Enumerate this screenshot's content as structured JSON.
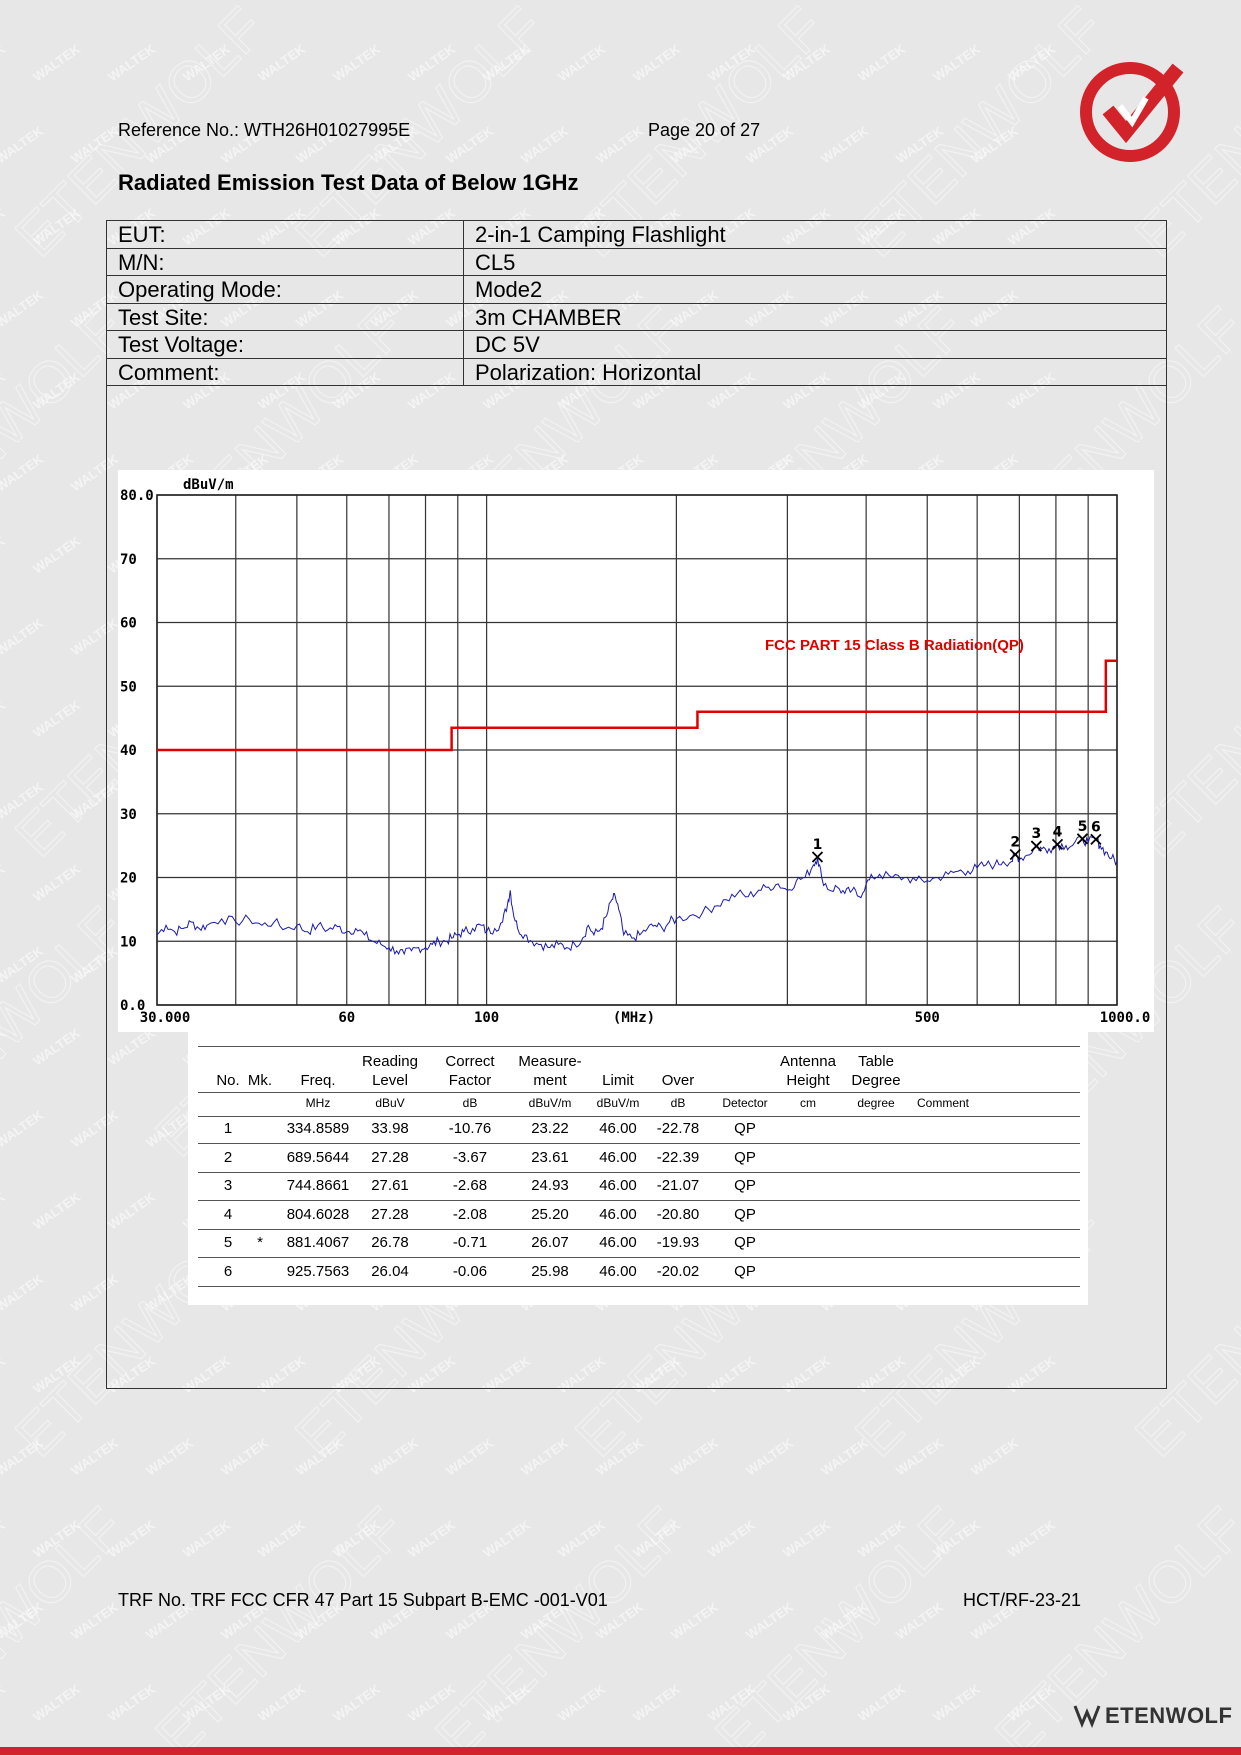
{
  "header": {
    "reference": "Reference No.: WTH26H01027995E",
    "page": "Page 20 of 27"
  },
  "title": "Radiated Emission Test Data of Below 1GHz",
  "info_rows": [
    {
      "key": "EUT:",
      "value": "2-in-1 Camping Flashlight"
    },
    {
      "key": "M/N:",
      "value": "CL5"
    },
    {
      "key": "Operating Mode:",
      "value": "Mode2"
    },
    {
      "key": "Test Site:",
      "value": "3m CHAMBER"
    },
    {
      "key": "Test Voltage:",
      "value": "DC 5V"
    },
    {
      "key": "Comment:",
      "value": "Polarization: Horizontal"
    }
  ],
  "chart_data": {
    "type": "line",
    "ylabel": "dBuV/m",
    "xlabel": "(MHz)",
    "x_scale": "log",
    "xlim": [
      30,
      1000
    ],
    "ylim": [
      0,
      80
    ],
    "y_ticks": [
      "0.0",
      "10",
      "20",
      "30",
      "40",
      "50",
      "60",
      "70",
      "80.0"
    ],
    "x_tick_labels": [
      {
        "value": 30,
        "label": "30.000"
      },
      {
        "value": 60,
        "label": "60"
      },
      {
        "value": 100,
        "label": "100"
      },
      {
        "value": 500,
        "label": "500"
      },
      {
        "value": 1000,
        "label": "1000.0"
      }
    ],
    "limit_label": "FCC PART 15 Class B Radiation(QP)",
    "limit_color": "#e00000",
    "trace_color": "#1a1ab0",
    "grid": true,
    "limit_line": [
      {
        "x": 30,
        "y": 40
      },
      {
        "x": 88,
        "y": 40
      },
      {
        "x": 88,
        "y": 43.5
      },
      {
        "x": 216,
        "y": 43.5
      },
      {
        "x": 216,
        "y": 46
      },
      {
        "x": 960,
        "y": 46
      },
      {
        "x": 960,
        "y": 54
      },
      {
        "x": 1000,
        "y": 54
      }
    ],
    "trace": [
      [
        30,
        11
      ],
      [
        31,
        12.5
      ],
      [
        32,
        11.5
      ],
      [
        33,
        12
      ],
      [
        34,
        13
      ],
      [
        35,
        12
      ],
      [
        36,
        12.5
      ],
      [
        38,
        13.5
      ],
      [
        40,
        13
      ],
      [
        42,
        13.5
      ],
      [
        44,
        12.5
      ],
      [
        46,
        13
      ],
      [
        48,
        12
      ],
      [
        50,
        12.5
      ],
      [
        52,
        11.5
      ],
      [
        54,
        12.5
      ],
      [
        56,
        11.8
      ],
      [
        58,
        12.3
      ],
      [
        60,
        11.5
      ],
      [
        62,
        12
      ],
      [
        64,
        11
      ],
      [
        66,
        10
      ],
      [
        68,
        9.5
      ],
      [
        70,
        9
      ],
      [
        72,
        8.5
      ],
      [
        74,
        8
      ],
      [
        76,
        8.5
      ],
      [
        78,
        9
      ],
      [
        80,
        9
      ],
      [
        82,
        9.5
      ],
      [
        84,
        10
      ],
      [
        86,
        10
      ],
      [
        88,
        10.5
      ],
      [
        90,
        11
      ],
      [
        92,
        11.5
      ],
      [
        95,
        12
      ],
      [
        98,
        12.5
      ],
      [
        100,
        11.5
      ],
      [
        103,
        12
      ],
      [
        106,
        13
      ],
      [
        108,
        16
      ],
      [
        109,
        18
      ],
      [
        110,
        15
      ],
      [
        112,
        12
      ],
      [
        115,
        11
      ],
      [
        118,
        10
      ],
      [
        122,
        9.5
      ],
      [
        126,
        9
      ],
      [
        130,
        9.5
      ],
      [
        134,
        9
      ],
      [
        138,
        9.5
      ],
      [
        142,
        10.5
      ],
      [
        145,
        12.5
      ],
      [
        148,
        11
      ],
      [
        152,
        12
      ],
      [
        155,
        14
      ],
      [
        158,
        16.5
      ],
      [
        160,
        17
      ],
      [
        162,
        15
      ],
      [
        165,
        11
      ],
      [
        170,
        10.5
      ],
      [
        175,
        11
      ],
      [
        180,
        12
      ],
      [
        185,
        12.5
      ],
      [
        190,
        12
      ],
      [
        195,
        13
      ],
      [
        200,
        13.5
      ],
      [
        210,
        14
      ],
      [
        220,
        14.5
      ],
      [
        230,
        15.5
      ],
      [
        240,
        16.5
      ],
      [
        250,
        17.5
      ],
      [
        260,
        17
      ],
      [
        270,
        18
      ],
      [
        280,
        18.5
      ],
      [
        290,
        19
      ],
      [
        300,
        18
      ],
      [
        310,
        19.5
      ],
      [
        320,
        20
      ],
      [
        330,
        22
      ],
      [
        335,
        23.2
      ],
      [
        340,
        20
      ],
      [
        350,
        18
      ],
      [
        360,
        18.5
      ],
      [
        370,
        17.5
      ],
      [
        380,
        18
      ],
      [
        390,
        17
      ],
      [
        400,
        19
      ],
      [
        410,
        20
      ],
      [
        420,
        20.5
      ],
      [
        440,
        20
      ],
      [
        460,
        20
      ],
      [
        480,
        19.5
      ],
      [
        500,
        19.5
      ],
      [
        520,
        20
      ],
      [
        540,
        20.5
      ],
      [
        560,
        21
      ],
      [
        580,
        21
      ],
      [
        600,
        21.5
      ],
      [
        620,
        22
      ],
      [
        640,
        22
      ],
      [
        660,
        22.5
      ],
      [
        680,
        22.5
      ],
      [
        690,
        23.6
      ],
      [
        700,
        23
      ],
      [
        720,
        23.5
      ],
      [
        745,
        24.9
      ],
      [
        760,
        24.5
      ],
      [
        780,
        24.5
      ],
      [
        805,
        25.2
      ],
      [
        830,
        25
      ],
      [
        850,
        25
      ],
      [
        881,
        26.1
      ],
      [
        900,
        25.5
      ],
      [
        926,
        26
      ],
      [
        940,
        25
      ],
      [
        960,
        24
      ],
      [
        980,
        23
      ],
      [
        1000,
        22.5
      ]
    ],
    "markers": [
      {
        "label": "1",
        "x": 334.8589,
        "y": 23.22
      },
      {
        "label": "2",
        "x": 689.5644,
        "y": 23.61
      },
      {
        "label": "3",
        "x": 744.8661,
        "y": 24.93
      },
      {
        "label": "4",
        "x": 804.6028,
        "y": 25.2
      },
      {
        "label": "5",
        "x": 881.4067,
        "y": 26.07
      },
      {
        "label": "6",
        "x": 925.7563,
        "y": 25.98
      }
    ]
  },
  "table": {
    "headers": [
      "No.",
      "Mk.",
      "Freq.",
      "Reading\nLevel",
      "Correct\nFactor",
      "Measure-\nment",
      "Limit",
      "Over",
      "",
      "Antenna\nHeight",
      "Table\nDegree",
      ""
    ],
    "units": [
      "",
      "",
      "MHz",
      "dBuV",
      "dB",
      "dBuV/m",
      "dBuV/m",
      "dB",
      "Detector",
      "cm",
      "degree",
      "Comment"
    ],
    "rows": [
      [
        "1",
        "",
        "334.8589",
        "33.98",
        "-10.76",
        "23.22",
        "46.00",
        "-22.78",
        "QP",
        "",
        "",
        ""
      ],
      [
        "2",
        "",
        "689.5644",
        "27.28",
        "-3.67",
        "23.61",
        "46.00",
        "-22.39",
        "QP",
        "",
        "",
        ""
      ],
      [
        "3",
        "",
        "744.8661",
        "27.61",
        "-2.68",
        "24.93",
        "46.00",
        "-21.07",
        "QP",
        "",
        "",
        ""
      ],
      [
        "4",
        "",
        "804.6028",
        "27.28",
        "-2.08",
        "25.20",
        "46.00",
        "-20.80",
        "QP",
        "",
        "",
        ""
      ],
      [
        "5",
        "*",
        "881.4067",
        "26.78",
        "-0.71",
        "26.07",
        "46.00",
        "-19.93",
        "QP",
        "",
        "",
        ""
      ],
      [
        "6",
        "",
        "925.7563",
        "26.04",
        "-0.06",
        "25.98",
        "46.00",
        "-20.02",
        "QP",
        "",
        "",
        ""
      ]
    ]
  },
  "footer": {
    "trf": "TRF No. TRF FCC CFR 47 Part 15 Subpart B-EMC -001-V01",
    "code": "HCT/RF-23-21",
    "brand": "ETENWOLF"
  },
  "colors": {
    "accent_red": "#d2232a"
  }
}
